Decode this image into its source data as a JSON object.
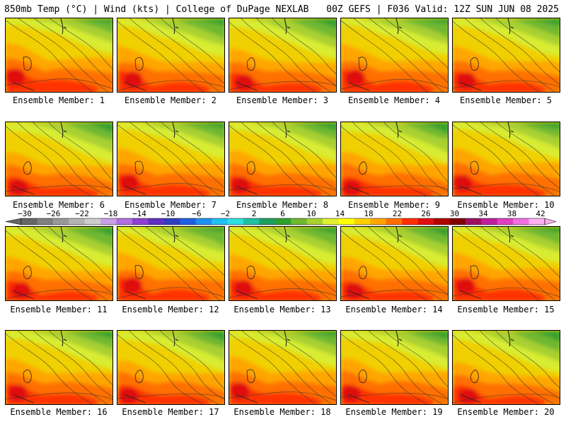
{
  "header": {
    "title": "850mb Temp (°C) | Wind (kts) | College of DuPage NEXLAB",
    "run_info": "00Z GEFS | F036 Valid: 12Z SUN JUN 08 2025"
  },
  "members": [
    "Ensemble Member: 1",
    "Ensemble Member: 2",
    "Ensemble Member: 3",
    "Ensemble Member: 4",
    "Ensemble Member: 5",
    "Ensemble Member: 6",
    "Ensemble Member: 7",
    "Ensemble Member: 8",
    "Ensemble Member: 9",
    "Ensemble Member: 10",
    "Ensemble Member: 11",
    "Ensemble Member: 12",
    "Ensemble Member: 13",
    "Ensemble Member: 14",
    "Ensemble Member: 15",
    "Ensemble Member: 16",
    "Ensemble Member: 17",
    "Ensemble Member: 18",
    "Ensemble Member: 19",
    "Ensemble Member: 20"
  ],
  "colorbar": {
    "tick_labels": [
      "−30",
      "−26",
      "−22",
      "−18",
      "−14",
      "−10",
      "−6",
      "−2",
      "2",
      "6",
      "10",
      "14",
      "18",
      "22",
      "26",
      "30",
      "34",
      "38",
      "42"
    ],
    "colors": [
      "#666666",
      "#808080",
      "#999999",
      "#b3b3b3",
      "#cccccc",
      "#c8a0e6",
      "#b070e0",
      "#9040d0",
      "#6030c0",
      "#3040c0",
      "#2060e0",
      "#2090f0",
      "#20c0f0",
      "#30e0e0",
      "#20c0a0",
      "#20a060",
      "#30a030",
      "#70b830",
      "#a8d030",
      "#e0f030",
      "#ffff00",
      "#ffd000",
      "#ffa500",
      "#ff7000",
      "#ff3000",
      "#e01010",
      "#b00000",
      "#800000",
      "#a01060",
      "#c020a0",
      "#e040c0",
      "#f070e0",
      "#ffb0f0"
    ]
  }
}
